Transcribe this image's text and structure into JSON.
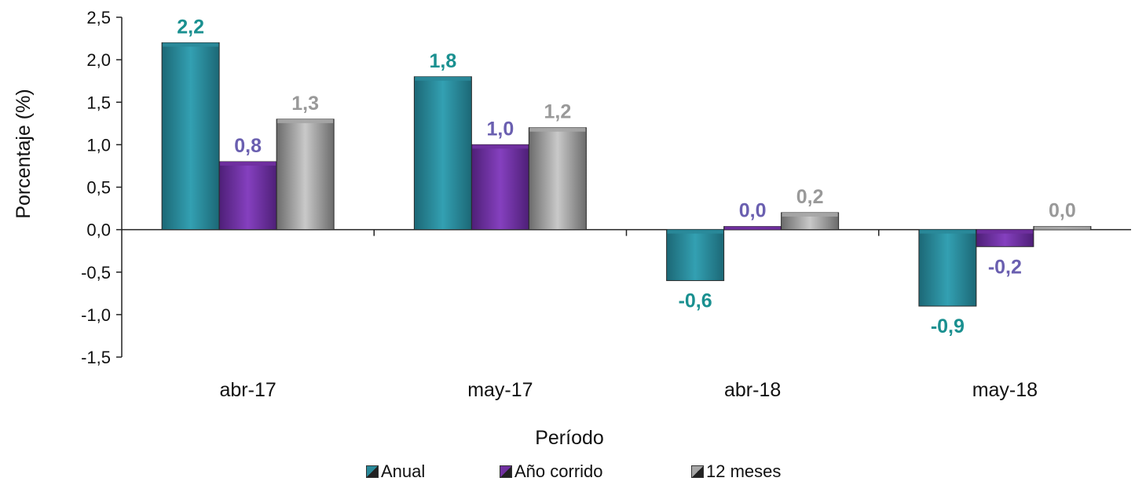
{
  "chart_data": {
    "type": "bar",
    "categories": [
      "abr-17",
      "may-17",
      "abr-18",
      "may-18"
    ],
    "series": [
      {
        "name": "Anual",
        "values": [
          2.2,
          1.8,
          -0.6,
          -0.9
        ],
        "color": "#2a8a9a",
        "label_color": "#1a9090"
      },
      {
        "name": "Año corrido",
        "values": [
          0.8,
          1.0,
          0.0,
          -0.2
        ],
        "color": "#7030a0",
        "label_color": "#6a5fb0"
      },
      {
        "name": "12 meses",
        "values": [
          1.3,
          1.2,
          0.2,
          0.0
        ],
        "color": "#a6a6a6",
        "label_color": "#999999"
      }
    ],
    "data_labels": [
      [
        "2,2",
        "1,8",
        "-0,6",
        "-0,9"
      ],
      [
        "0,8",
        "1,0",
        "0,0",
        "-0,2"
      ],
      [
        "1,3",
        "1,2",
        "0,2",
        "0,0"
      ]
    ],
    "ylabel": "Porcentaje (%)",
    "xlabel": "Período",
    "ylim": [
      -1.5,
      2.5
    ],
    "yticks": [
      "2,5",
      "2,0",
      "1,5",
      "1,0",
      "0,5",
      "0,0",
      "-0,5",
      "-1,0",
      "-1,5"
    ],
    "ytick_values": [
      2.5,
      2.0,
      1.5,
      1.0,
      0.5,
      0.0,
      -0.5,
      -1.0,
      -1.5
    ],
    "grid": false,
    "legend_position": "bottom"
  }
}
